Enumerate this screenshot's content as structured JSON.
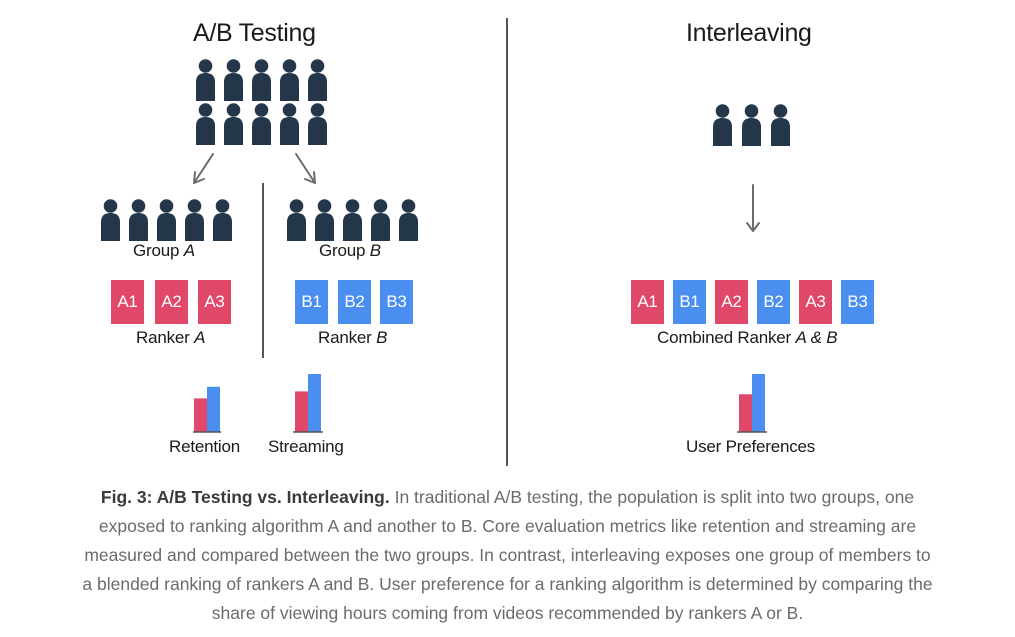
{
  "left": {
    "title": "A/B Testing",
    "group_a": {
      "label_prefix": "Group ",
      "label_italic": "A"
    },
    "group_b": {
      "label_prefix": "Group ",
      "label_italic": "B"
    },
    "ranker_a": {
      "tiles": [
        "A1",
        "A2",
        "A3"
      ],
      "label_prefix": "Ranker ",
      "label_italic": "A"
    },
    "ranker_b": {
      "tiles": [
        "B1",
        "B2",
        "B3"
      ],
      "label_prefix": "Ranker ",
      "label_italic": "B"
    },
    "metrics": [
      {
        "label": "Retention",
        "bar_a": 0.58,
        "bar_b": 0.78
      },
      {
        "label": "Streaming",
        "bar_a": 0.7,
        "bar_b": 1.0
      }
    ]
  },
  "right": {
    "title": "Interleaving",
    "tiles": [
      "A1",
      "B1",
      "A2",
      "B2",
      "A3",
      "B3"
    ],
    "combined_label": "Combined Ranker ",
    "combined_label_italic": "A & B",
    "metric": {
      "label": "User Preferences",
      "bar_a": 0.65,
      "bar_b": 1.0
    }
  },
  "colors": {
    "ranker_a": "#e0486a",
    "ranker_b": "#4a8ff0",
    "person": "#24364a"
  },
  "caption": {
    "bold": "Fig. 3: A/B Testing vs. Interleaving.",
    "line1_rest": " In traditional A/B testing, the population is split into two groups, one",
    "line2": "exposed to ranking algorithm A and another to B. Core evaluation metrics like retention and streaming are",
    "line3": "measured and compared between the two groups. In contrast, interleaving exposes one group of members to",
    "line4": "a blended ranking of rankers A and B. User preference for a ranking algorithm is determined by comparing the",
    "line5": "share of viewing hours coming from videos recommended by rankers A or B."
  }
}
